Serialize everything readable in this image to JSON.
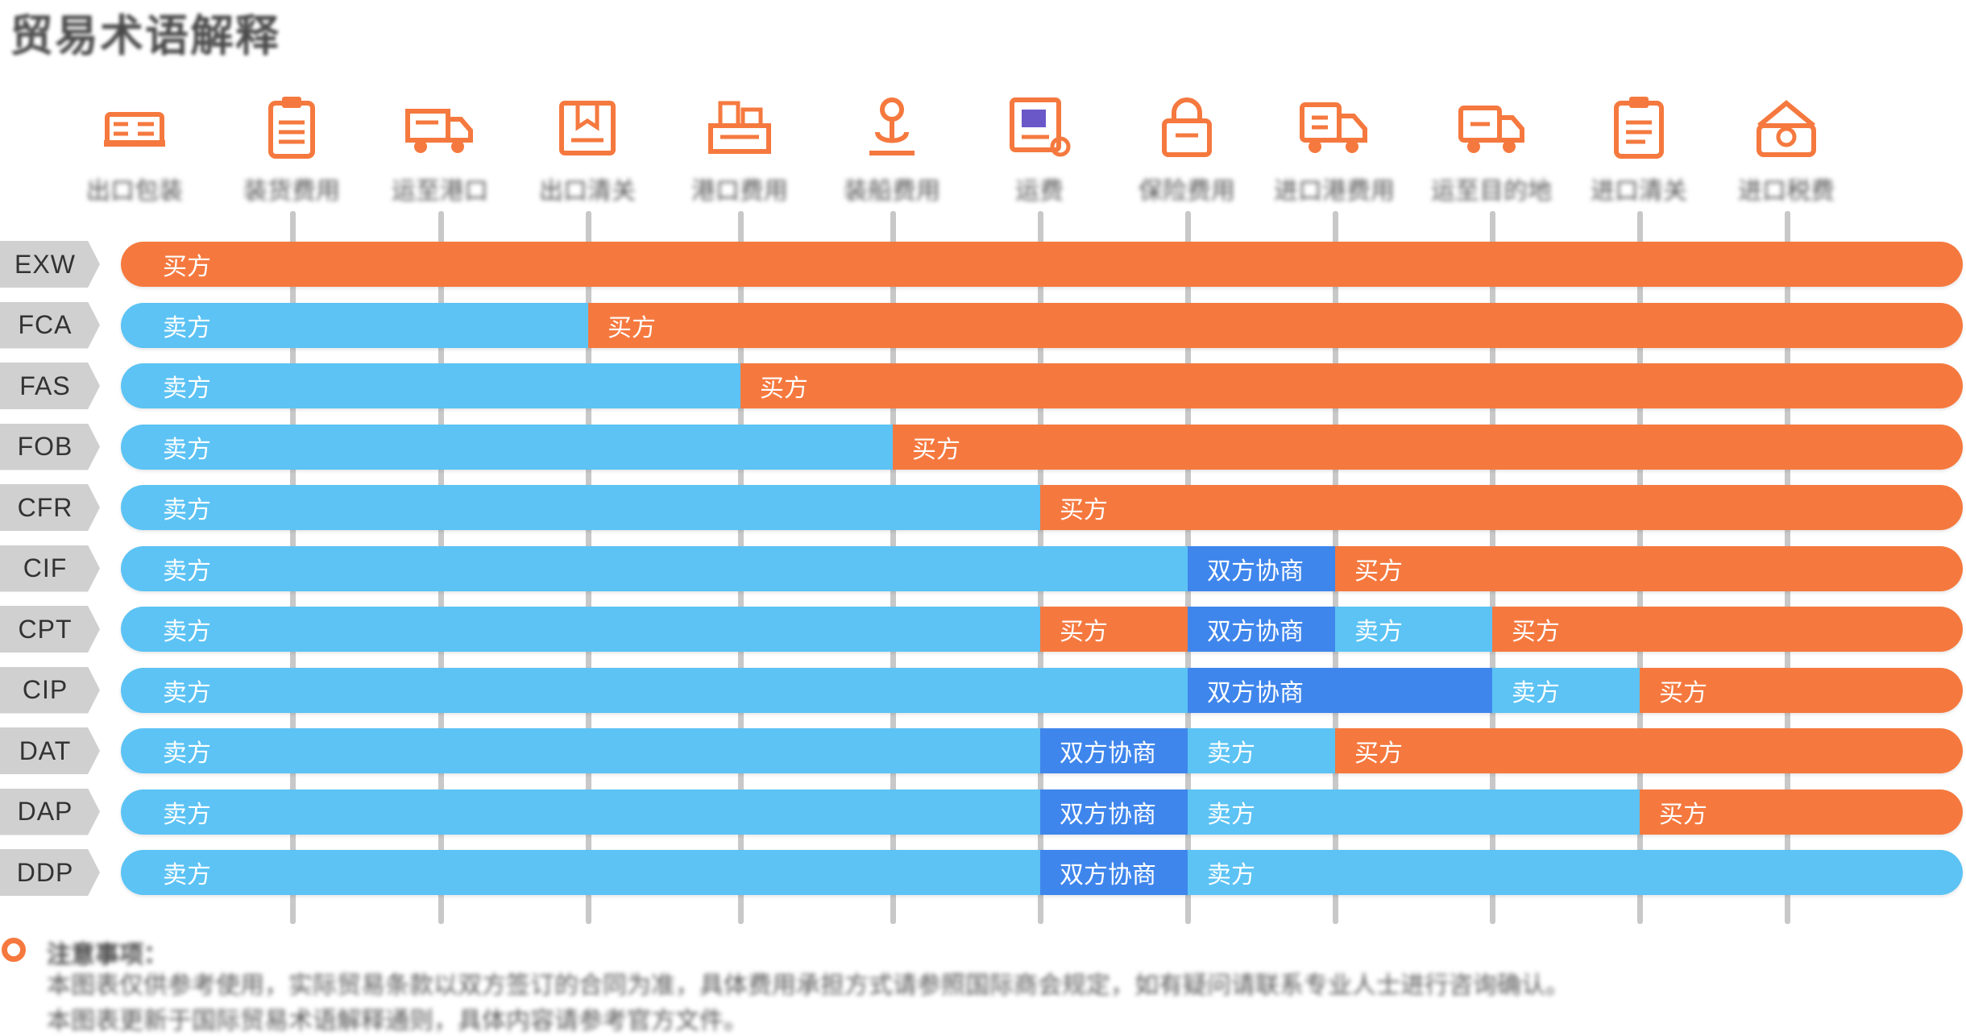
{
  "title": "贸易术语解释",
  "colors": {
    "seller": "#5cc3f4",
    "buyer": "#f5793f",
    "negotiate": "#3f86ec",
    "tick": "#c8c8c8",
    "label_bg": "#d0d0d0"
  },
  "stages": [
    {
      "label": "出口包装",
      "icon": "package-icon"
    },
    {
      "label": "装货费用",
      "icon": "clipboard-icon"
    },
    {
      "label": "运至港口",
      "icon": "truck-icon"
    },
    {
      "label": "出口清关",
      "icon": "customs-box-icon"
    },
    {
      "label": "港口费用",
      "icon": "port-icon"
    },
    {
      "label": "装船费用",
      "icon": "ship-loading-icon"
    },
    {
      "label": "运费",
      "icon": "freight-icon"
    },
    {
      "label": "保险费用",
      "icon": "insurance-lock-icon"
    },
    {
      "label": "进口港费用",
      "icon": "import-truck-icon"
    },
    {
      "label": "运至目的地",
      "icon": "delivery-truck-icon"
    },
    {
      "label": "进口清关",
      "icon": "clearance-doc-icon"
    },
    {
      "label": "进口税费",
      "icon": "tax-icon"
    }
  ],
  "rows": [
    {
      "term": "EXW",
      "segments": [
        {
          "text": "买方",
          "party": "buyer",
          "from": 0,
          "to": 12
        }
      ]
    },
    {
      "term": "FCA",
      "segments": [
        {
          "text": "卖方",
          "party": "seller",
          "from": 0,
          "to": 3
        },
        {
          "text": "买方",
          "party": "buyer",
          "from": 3,
          "to": 12
        }
      ]
    },
    {
      "term": "FAS",
      "segments": [
        {
          "text": "卖方",
          "party": "seller",
          "from": 0,
          "to": 4
        },
        {
          "text": "买方",
          "party": "buyer",
          "from": 4,
          "to": 12
        }
      ]
    },
    {
      "term": "FOB",
      "segments": [
        {
          "text": "卖方",
          "party": "seller",
          "from": 0,
          "to": 5
        },
        {
          "text": "买方",
          "party": "buyer",
          "from": 5,
          "to": 12
        }
      ]
    },
    {
      "term": "CFR",
      "segments": [
        {
          "text": "卖方",
          "party": "seller",
          "from": 0,
          "to": 6
        },
        {
          "text": "买方",
          "party": "buyer",
          "from": 6,
          "to": 12
        }
      ]
    },
    {
      "term": "CIF",
      "segments": [
        {
          "text": "卖方",
          "party": "seller",
          "from": 0,
          "to": 7
        },
        {
          "text": "双方协商",
          "party": "negotiate",
          "from": 7,
          "to": 8
        },
        {
          "text": "买方",
          "party": "buyer",
          "from": 8,
          "to": 12
        }
      ]
    },
    {
      "term": "CPT",
      "segments": [
        {
          "text": "卖方",
          "party": "seller",
          "from": 0,
          "to": 6
        },
        {
          "text": "买方",
          "party": "buyer",
          "from": 6,
          "to": 7
        },
        {
          "text": "双方协商",
          "party": "negotiate",
          "from": 7,
          "to": 8
        },
        {
          "text": "卖方",
          "party": "seller",
          "from": 8,
          "to": 9
        },
        {
          "text": "买方",
          "party": "buyer",
          "from": 9,
          "to": 12
        }
      ]
    },
    {
      "term": "CIP",
      "segments": [
        {
          "text": "卖方",
          "party": "seller",
          "from": 0,
          "to": 7
        },
        {
          "text": "双方协商",
          "party": "negotiate",
          "from": 7,
          "to": 9
        },
        {
          "text": "卖方",
          "party": "seller",
          "from": 9,
          "to": 10
        },
        {
          "text": "买方",
          "party": "buyer",
          "from": 10,
          "to": 12
        }
      ]
    },
    {
      "term": "DAT",
      "segments": [
        {
          "text": "卖方",
          "party": "seller",
          "from": 0,
          "to": 6
        },
        {
          "text": "双方协商",
          "party": "negotiate",
          "from": 6,
          "to": 7
        },
        {
          "text": "卖方",
          "party": "seller",
          "from": 7,
          "to": 8
        },
        {
          "text": "买方",
          "party": "buyer",
          "from": 8,
          "to": 12
        }
      ]
    },
    {
      "term": "DAP",
      "segments": [
        {
          "text": "卖方",
          "party": "seller",
          "from": 0,
          "to": 6
        },
        {
          "text": "双方协商",
          "party": "negotiate",
          "from": 6,
          "to": 7
        },
        {
          "text": "卖方",
          "party": "seller",
          "from": 7,
          "to": 10
        },
        {
          "text": "买方",
          "party": "buyer",
          "from": 10,
          "to": 12
        }
      ]
    },
    {
      "term": "DDP",
      "segments": [
        {
          "text": "卖方",
          "party": "seller",
          "from": 0,
          "to": 6
        },
        {
          "text": "双方协商",
          "party": "negotiate",
          "from": 6,
          "to": 7
        },
        {
          "text": "卖方",
          "party": "seller",
          "from": 7,
          "to": 12
        }
      ]
    }
  ],
  "notes": {
    "heading": "注意事项：",
    "line1": "本图表仅供参考使用，实际贸易条款以双方签订的合同为准，具体费用承担方式请参照国际商会规定，如有疑问请联系专业人士进行咨询确认。",
    "line2": "本图表更新于国际贸易术语解释通则，具体内容请参考官方文件。"
  }
}
